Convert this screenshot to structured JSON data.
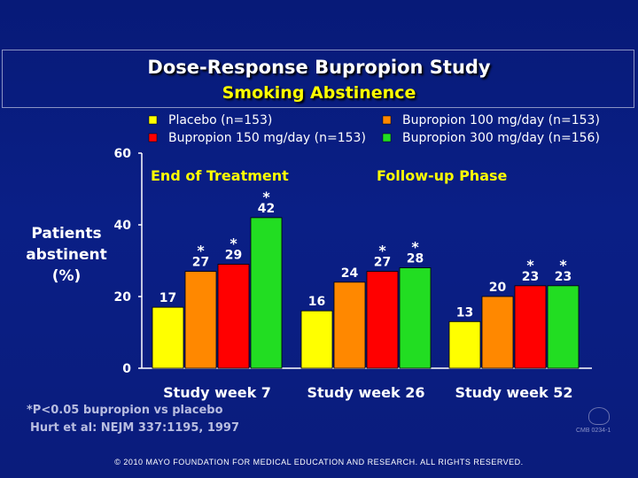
{
  "title": "Dose-Response Bupropion Study",
  "subtitle": "Smoking Abstinence",
  "footnote_1": "*P<0.05 bupropion vs placebo",
  "footnote_2": "Hurt et al:  NEJM 337:1195, 1997",
  "copyright": "© 2010 MAYO FOUNDATION FOR MEDICAL EDUCATION AND RESEARCH.  ALL RIGHTS RESERVED.",
  "slide_code": "CMB 0234-1",
  "colors": {
    "placebo": "#ffff00",
    "bup100": "#ff8800",
    "bup150": "#ff0000",
    "bup300": "#22dd22"
  },
  "chart_data": {
    "type": "bar",
    "title": "",
    "ylabel_lines": [
      "Patients",
      "abstinent",
      "(%)"
    ],
    "xlabel": "",
    "ylim": [
      0,
      60
    ],
    "yticks": [
      0,
      20,
      40,
      60
    ],
    "phase_labels": [
      "End of Treatment",
      "Follow-up Phase"
    ],
    "categories": [
      "Study week 7",
      "Study week 26",
      "Study week 52"
    ],
    "series": [
      {
        "name": "Placebo (n=153)",
        "color_key": "placebo",
        "values": [
          17,
          16,
          13
        ],
        "significant": [
          false,
          false,
          false
        ]
      },
      {
        "name": "Bupropion 100 mg/day (n=153)",
        "color_key": "bup100",
        "values": [
          27,
          24,
          20
        ],
        "significant": [
          true,
          false,
          false
        ]
      },
      {
        "name": "Bupropion 150 mg/day (n=153)",
        "color_key": "bup150",
        "values": [
          29,
          27,
          23
        ],
        "significant": [
          true,
          true,
          true
        ]
      },
      {
        "name": "Bupropion 300 mg/day (n=156)",
        "color_key": "bup300",
        "values": [
          42,
          28,
          23
        ],
        "significant": [
          true,
          true,
          true
        ]
      }
    ],
    "significance_marker": "*"
  }
}
